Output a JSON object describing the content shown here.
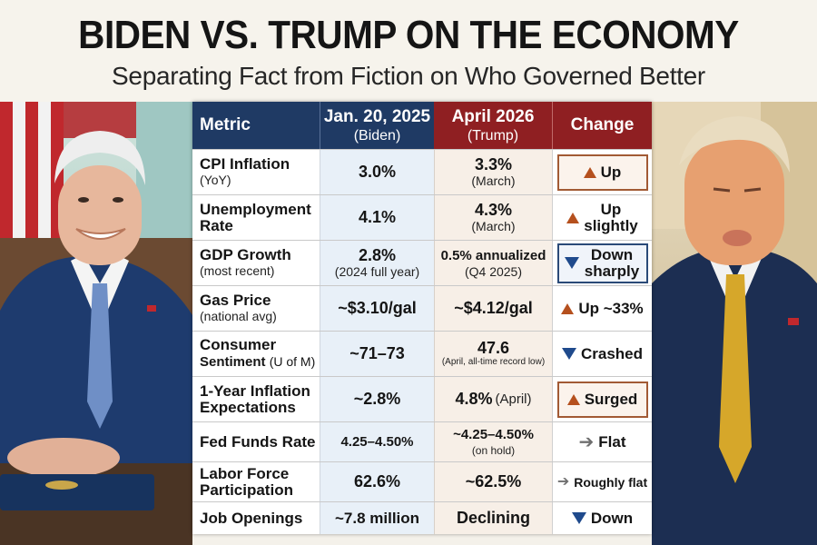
{
  "header": {
    "title": "BIDEN VS. TRUMP ON THE ECONOMY",
    "subtitle": "Separating Fact from Fiction on Who Governed Better"
  },
  "colors": {
    "biden_header": "#1f3a64",
    "trump_header": "#8f1f22",
    "up_arrow": "#b5501e",
    "down_arrow": "#1f4a8c",
    "flat_arrow": "#6f6f6f"
  },
  "table": {
    "columns": {
      "metric": "Metric",
      "biden_date": "Jan. 20, 2025",
      "biden_name": "(Biden)",
      "trump_date": "April 2026",
      "trump_name": "(Trump)",
      "change": "Change"
    },
    "rows": [
      {
        "metric": "CPI Inflation",
        "metric_sub": "(YoY)",
        "biden": "3.0%",
        "biden_sub": "",
        "trump": "3.3%",
        "trump_sub": "(March)",
        "change": "Up",
        "direction": "up-arrow-icon"
      },
      {
        "metric": "Unemployment",
        "metric_sub": "Rate",
        "biden": "4.1%",
        "biden_sub": "",
        "trump": "4.3%",
        "trump_sub": "(March)",
        "change": "Up slightly",
        "direction": "up-arrow-icon"
      },
      {
        "metric": "GDP Growth",
        "metric_sub": "(most recent)",
        "biden": "2.8%",
        "biden_sub": "(2024 full year)",
        "trump": "0.5% annualized",
        "trump_sub": "(Q4 2025)",
        "change": "Down sharply",
        "direction": "down-arrow-icon"
      },
      {
        "metric": "Gas Price",
        "metric_sub": "(national avg)",
        "biden": "~$3.10/gal",
        "biden_sub": "",
        "trump": "~$4.12/gal",
        "trump_sub": "",
        "change": "Up ~33%",
        "direction": "up-arrow-icon"
      },
      {
        "metric": "Consumer",
        "metric_sub_bold": "Sentiment",
        "metric_sub": "(U of M)",
        "biden": "~71–73",
        "biden_sub": "",
        "trump": "47.6",
        "trump_sub": "(April, all-time record low)",
        "change": "Crashed",
        "direction": "down-arrow-icon"
      },
      {
        "metric": "1-Year Inflation",
        "metric_sub": "Expectations",
        "biden": "~2.8%",
        "biden_sub": "",
        "trump": "4.8%",
        "trump_sub": "(April)",
        "change": "Surged",
        "direction": "up-arrow-icon"
      },
      {
        "metric": "Fed Funds Rate",
        "metric_sub": "",
        "biden": "4.25–4.50%",
        "biden_sub": "",
        "trump": "~4.25–4.50%",
        "trump_sub": "(on hold)",
        "change": "Flat",
        "direction": "right-arrow-icon"
      },
      {
        "metric": "Labor Force",
        "metric_sub": "Participation",
        "biden": "62.6%",
        "biden_sub": "",
        "trump": "~62.5%",
        "trump_sub": "",
        "change": "Roughly flat",
        "direction": "right-arrow-icon"
      },
      {
        "metric": "Job Openings",
        "metric_sub": "",
        "biden": "~7.8 million",
        "biden_sub": "",
        "trump": "Declining",
        "trump_sub": "",
        "change": "Down",
        "direction": "down-arrow-icon"
      }
    ]
  }
}
